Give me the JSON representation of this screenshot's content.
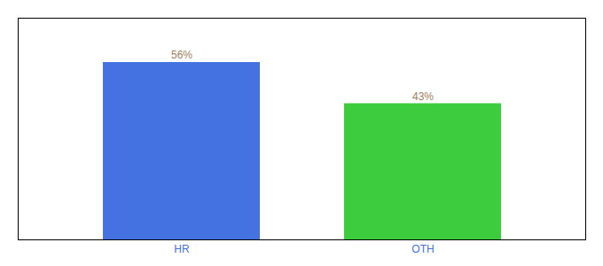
{
  "chart_data": {
    "type": "bar",
    "categories": [
      "HR",
      "OTH"
    ],
    "values": [
      56,
      43
    ],
    "value_labels": [
      "56%",
      "43%"
    ],
    "colors": [
      "#4472e0",
      "#3dcc3d"
    ],
    "ylim": [
      0,
      70
    ],
    "data_labels": true,
    "tick_labels": "x",
    "grid": false
  }
}
